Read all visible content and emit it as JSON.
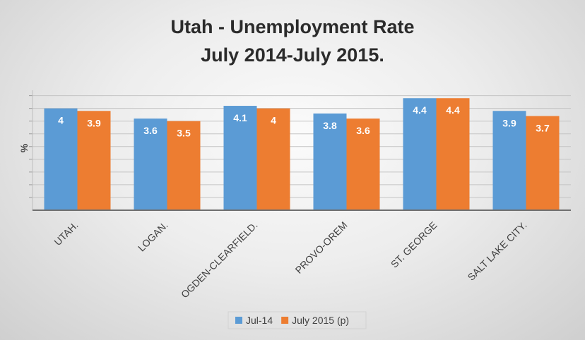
{
  "chart_data": {
    "type": "bar",
    "title_line1": "Utah - Unemployment Rate",
    "title_line2": "July 2014-July 2015.",
    "ylabel": "%",
    "xlabel": "",
    "ylim": [
      0,
      4.6
    ],
    "grid": true,
    "legend_position": "bottom",
    "categories": [
      "UTAH.",
      "LOGAN.",
      "OGDEN-CLEARFIELD.",
      "PROVO-OREM",
      "ST. GEORGE",
      "SALT LAKE CITY."
    ],
    "series": [
      {
        "name": "Jul-14",
        "color": "#5b9bd5",
        "values": [
          4,
          3.6,
          4.1,
          3.8,
          4.4,
          3.9
        ]
      },
      {
        "name": "July 2015 (p)",
        "color": "#ed7d31",
        "values": [
          3.9,
          3.5,
          4,
          3.6,
          4.4,
          3.7
        ]
      }
    ]
  }
}
